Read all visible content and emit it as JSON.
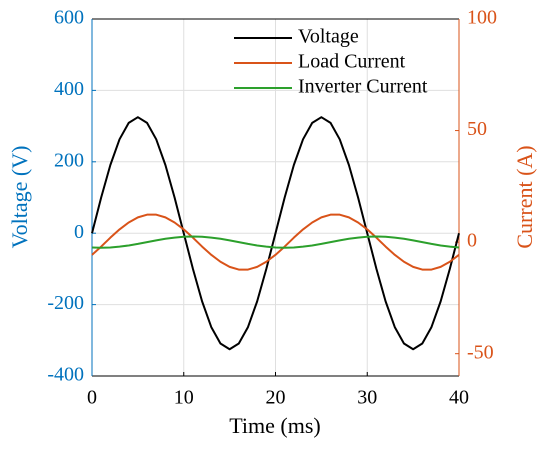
{
  "chart_data": {
    "type": "line",
    "x_label": "Time (ms)",
    "y_label": "Voltage (V)",
    "y2_label": "Current (A)",
    "x": [
      0,
      1,
      2,
      3,
      4,
      5,
      6,
      7,
      8,
      9,
      10,
      11,
      12,
      13,
      14,
      15,
      16,
      17,
      18,
      19,
      20,
      21,
      22,
      23,
      24,
      25,
      26,
      27,
      28,
      29,
      30,
      31,
      32,
      33,
      34,
      35,
      36,
      37,
      38,
      39,
      40
    ],
    "series": [
      {
        "name": "Voltage",
        "color": "#000000",
        "axis": "y",
        "values": [
          0,
          100,
          191,
          263,
          309,
          325,
          309,
          263,
          191,
          100,
          0,
          -100,
          -191,
          -263,
          -309,
          -325,
          -309,
          -263,
          -191,
          -100,
          0,
          100,
          191,
          263,
          309,
          325,
          309,
          263,
          191,
          100,
          0,
          -100,
          -191,
          -263,
          -309,
          -325,
          -309,
          -263,
          -191,
          -100,
          0
        ]
      },
      {
        "name": "Load Current",
        "color": "#d95319",
        "axis": "y2",
        "values": [
          -5.7,
          -2.0,
          2.0,
          5.7,
          8.8,
          11.1,
          12.3,
          12.3,
          11.1,
          8.8,
          5.7,
          2.0,
          -2.0,
          -5.7,
          -8.8,
          -11.1,
          -12.3,
          -12.3,
          -11.1,
          -8.8,
          -5.7,
          -2.0,
          2.0,
          5.7,
          8.8,
          11.1,
          12.3,
          12.3,
          11.1,
          8.8,
          5.7,
          2.0,
          -2.0,
          -5.7,
          -8.8,
          -11.1,
          -12.3,
          -12.3,
          -11.1,
          -8.8,
          -5.7
        ]
      },
      {
        "name": "Inverter Current",
        "color": "#2ca02c",
        "axis": "y2",
        "values": [
          -2.4,
          -2.5,
          -2.4,
          -2.0,
          -1.5,
          -0.8,
          0,
          0.8,
          1.5,
          2.0,
          2.4,
          2.5,
          2.4,
          2.0,
          1.5,
          0.8,
          0,
          -0.8,
          -1.5,
          -2.0,
          -2.4,
          -2.5,
          -2.4,
          -2.0,
          -1.5,
          -0.8,
          0,
          0.8,
          1.5,
          2.0,
          2.4,
          2.5,
          2.4,
          2.0,
          1.5,
          0.8,
          0,
          -0.8,
          -1.5,
          -2.0,
          -2.4
        ]
      }
    ],
    "xlim": [
      0,
      40
    ],
    "xticks": [
      0,
      10,
      20,
      30,
      40
    ],
    "ylim": [
      -400,
      600
    ],
    "yticks": [
      -400,
      -200,
      0,
      200,
      400,
      600
    ],
    "y_color": "#0072bd",
    "y2lim": [
      -60,
      100
    ],
    "y2ticks": [
      -50,
      0,
      50,
      100
    ],
    "y2_color": "#d95319",
    "grid": true,
    "legend": "top"
  }
}
